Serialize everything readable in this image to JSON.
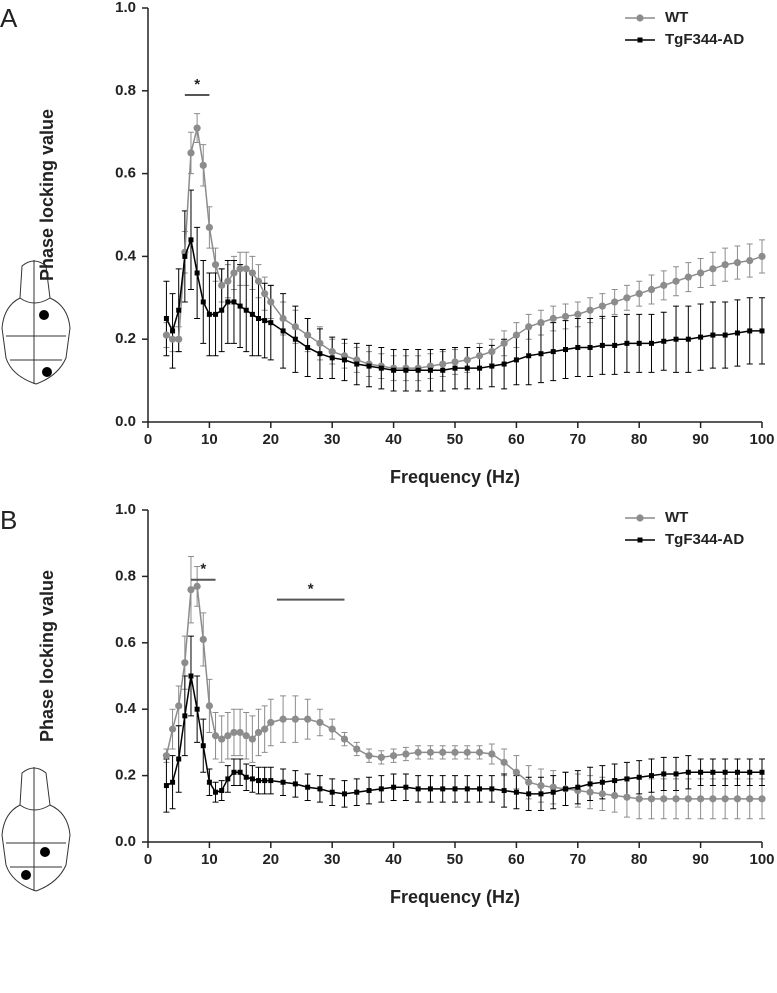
{
  "chart_data": [
    {
      "type": "line",
      "panel_label": "A",
      "xlabel": "Frequency (Hz)",
      "ylabel": "Phase locking value",
      "x": [
        3,
        4,
        5,
        6,
        7,
        8,
        9,
        10,
        11,
        12,
        13,
        14,
        15,
        16,
        17,
        18,
        19,
        20,
        22,
        24,
        26,
        28,
        30,
        32,
        34,
        36,
        38,
        40,
        42,
        44,
        46,
        48,
        50,
        52,
        54,
        56,
        58,
        60,
        62,
        64,
        66,
        68,
        70,
        72,
        74,
        76,
        78,
        80,
        82,
        84,
        86,
        88,
        90,
        92,
        94,
        96,
        98,
        100
      ],
      "series": [
        {
          "name": "WT",
          "color": "#8c8c8c",
          "marker": "circle",
          "values": [
            0.21,
            0.2,
            0.2,
            0.41,
            0.65,
            0.71,
            0.62,
            0.47,
            0.38,
            0.33,
            0.34,
            0.36,
            0.37,
            0.37,
            0.36,
            0.34,
            0.31,
            0.29,
            0.25,
            0.23,
            0.21,
            0.19,
            0.17,
            0.16,
            0.15,
            0.14,
            0.135,
            0.13,
            0.13,
            0.13,
            0.135,
            0.14,
            0.145,
            0.15,
            0.16,
            0.17,
            0.19,
            0.21,
            0.23,
            0.24,
            0.25,
            0.255,
            0.26,
            0.27,
            0.28,
            0.29,
            0.3,
            0.31,
            0.32,
            0.33,
            0.34,
            0.35,
            0.36,
            0.37,
            0.38,
            0.385,
            0.39,
            0.4
          ],
          "errors": [
            0.03,
            0.03,
            0.03,
            0.05,
            0.05,
            0.035,
            0.05,
            0.05,
            0.04,
            0.04,
            0.04,
            0.04,
            0.04,
            0.04,
            0.04,
            0.04,
            0.04,
            0.04,
            0.04,
            0.04,
            0.04,
            0.04,
            0.03,
            0.03,
            0.03,
            0.03,
            0.03,
            0.03,
            0.03,
            0.03,
            0.03,
            0.03,
            0.03,
            0.03,
            0.03,
            0.03,
            0.03,
            0.03,
            0.03,
            0.03,
            0.03,
            0.03,
            0.03,
            0.03,
            0.03,
            0.03,
            0.03,
            0.03,
            0.035,
            0.035,
            0.035,
            0.035,
            0.035,
            0.04,
            0.04,
            0.04,
            0.04,
            0.04
          ]
        },
        {
          "name": "TgF344-AD",
          "color": "#000000",
          "marker": "square",
          "values": [
            0.25,
            0.22,
            0.27,
            0.4,
            0.44,
            0.36,
            0.29,
            0.26,
            0.26,
            0.27,
            0.29,
            0.29,
            0.28,
            0.27,
            0.26,
            0.25,
            0.245,
            0.24,
            0.22,
            0.2,
            0.18,
            0.165,
            0.155,
            0.15,
            0.14,
            0.135,
            0.13,
            0.125,
            0.125,
            0.125,
            0.125,
            0.125,
            0.13,
            0.13,
            0.13,
            0.135,
            0.14,
            0.15,
            0.16,
            0.165,
            0.17,
            0.175,
            0.18,
            0.18,
            0.185,
            0.185,
            0.19,
            0.19,
            0.19,
            0.195,
            0.2,
            0.2,
            0.205,
            0.21,
            0.21,
            0.215,
            0.22,
            0.22
          ],
          "errors": [
            0.09,
            0.09,
            0.1,
            0.11,
            0.12,
            0.11,
            0.1,
            0.1,
            0.1,
            0.1,
            0.1,
            0.1,
            0.1,
            0.1,
            0.1,
            0.09,
            0.09,
            0.09,
            0.09,
            0.08,
            0.07,
            0.06,
            0.05,
            0.05,
            0.05,
            0.05,
            0.05,
            0.05,
            0.05,
            0.05,
            0.05,
            0.05,
            0.05,
            0.05,
            0.05,
            0.05,
            0.06,
            0.06,
            0.07,
            0.07,
            0.07,
            0.07,
            0.07,
            0.07,
            0.07,
            0.07,
            0.07,
            0.07,
            0.07,
            0.07,
            0.08,
            0.08,
            0.08,
            0.08,
            0.08,
            0.08,
            0.08,
            0.08
          ]
        }
      ],
      "annotations": [
        {
          "text": "*",
          "x": [
            6,
            10
          ],
          "y": 0.79
        }
      ],
      "xlim": [
        0,
        100
      ],
      "xticks": [
        0,
        10,
        20,
        30,
        40,
        50,
        60,
        70,
        80,
        90,
        100
      ],
      "ylim": [
        0,
        1
      ],
      "yticks": [
        {
          "value": 0,
          "label": "0.0"
        },
        0.2,
        0.4,
        0.6,
        0.8,
        {
          "value": 1,
          "label": "1.0"
        }
      ],
      "legend": "upper right"
    },
    {
      "type": "line",
      "panel_label": "B",
      "xlabel": "Frequency (Hz)",
      "ylabel": "Phase locking value",
      "x": [
        3,
        4,
        5,
        6,
        7,
        8,
        9,
        10,
        11,
        12,
        13,
        14,
        15,
        16,
        17,
        18,
        19,
        20,
        22,
        24,
        26,
        28,
        30,
        32,
        34,
        36,
        38,
        40,
        42,
        44,
        46,
        48,
        50,
        52,
        54,
        56,
        58,
        60,
        62,
        64,
        66,
        68,
        70,
        72,
        74,
        76,
        78,
        80,
        82,
        84,
        86,
        88,
        90,
        92,
        94,
        96,
        98,
        100
      ],
      "series": [
        {
          "name": "WT",
          "color": "#8c8c8c",
          "marker": "circle",
          "values": [
            0.26,
            0.34,
            0.41,
            0.54,
            0.76,
            0.77,
            0.61,
            0.41,
            0.32,
            0.31,
            0.32,
            0.33,
            0.33,
            0.32,
            0.31,
            0.33,
            0.34,
            0.36,
            0.37,
            0.37,
            0.37,
            0.36,
            0.34,
            0.31,
            0.28,
            0.26,
            0.255,
            0.26,
            0.265,
            0.27,
            0.27,
            0.27,
            0.27,
            0.27,
            0.27,
            0.265,
            0.24,
            0.21,
            0.18,
            0.17,
            0.165,
            0.16,
            0.155,
            0.15,
            0.145,
            0.14,
            0.135,
            0.13,
            0.13,
            0.13,
            0.13,
            0.13,
            0.13,
            0.13,
            0.13,
            0.13,
            0.13,
            0.13
          ],
          "errors": [
            0.02,
            0.06,
            0.06,
            0.08,
            0.1,
            0.06,
            0.08,
            0.08,
            0.07,
            0.07,
            0.07,
            0.07,
            0.07,
            0.07,
            0.07,
            0.07,
            0.07,
            0.07,
            0.07,
            0.07,
            0.06,
            0.04,
            0.03,
            0.02,
            0.02,
            0.02,
            0.02,
            0.02,
            0.02,
            0.02,
            0.02,
            0.02,
            0.02,
            0.02,
            0.02,
            0.03,
            0.04,
            0.05,
            0.05,
            0.05,
            0.05,
            0.05,
            0.05,
            0.05,
            0.05,
            0.05,
            0.06,
            0.06,
            0.06,
            0.06,
            0.06,
            0.06,
            0.06,
            0.06,
            0.06,
            0.06,
            0.06,
            0.06
          ]
        },
        {
          "name": "TgF344-AD",
          "color": "#000000",
          "marker": "square",
          "values": [
            0.17,
            0.18,
            0.25,
            0.38,
            0.5,
            0.4,
            0.29,
            0.18,
            0.15,
            0.155,
            0.19,
            0.21,
            0.21,
            0.195,
            0.19,
            0.185,
            0.185,
            0.185,
            0.18,
            0.175,
            0.165,
            0.16,
            0.15,
            0.145,
            0.15,
            0.155,
            0.16,
            0.165,
            0.165,
            0.16,
            0.16,
            0.16,
            0.16,
            0.16,
            0.16,
            0.16,
            0.155,
            0.15,
            0.145,
            0.145,
            0.15,
            0.16,
            0.165,
            0.175,
            0.18,
            0.185,
            0.19,
            0.195,
            0.2,
            0.205,
            0.205,
            0.21,
            0.21,
            0.21,
            0.21,
            0.21,
            0.21,
            0.21
          ],
          "errors": [
            0.08,
            0.08,
            0.1,
            0.12,
            0.12,
            0.1,
            0.08,
            0.04,
            0.03,
            0.03,
            0.04,
            0.04,
            0.04,
            0.04,
            0.04,
            0.04,
            0.04,
            0.04,
            0.04,
            0.04,
            0.04,
            0.04,
            0.04,
            0.04,
            0.04,
            0.04,
            0.04,
            0.04,
            0.04,
            0.04,
            0.04,
            0.04,
            0.04,
            0.04,
            0.04,
            0.04,
            0.05,
            0.05,
            0.05,
            0.05,
            0.05,
            0.05,
            0.05,
            0.05,
            0.05,
            0.05,
            0.05,
            0.05,
            0.05,
            0.05,
            0.05,
            0.05,
            0.04,
            0.04,
            0.04,
            0.04,
            0.04,
            0.04
          ]
        }
      ],
      "annotations": [
        {
          "text": "*",
          "x": [
            7,
            11
          ],
          "y": 0.79
        },
        {
          "text": "*",
          "x": [
            21,
            32
          ],
          "y": 0.73
        }
      ],
      "xlim": [
        0,
        100
      ],
      "xticks": [
        0,
        10,
        20,
        30,
        40,
        50,
        60,
        70,
        80,
        90,
        100
      ],
      "ylim": [
        0,
        1
      ],
      "yticks": [
        {
          "value": 0,
          "label": "0.0"
        },
        0.2,
        0.4,
        0.6,
        0.8,
        {
          "value": 1,
          "label": "1.0"
        }
      ],
      "legend": "upper right"
    }
  ]
}
